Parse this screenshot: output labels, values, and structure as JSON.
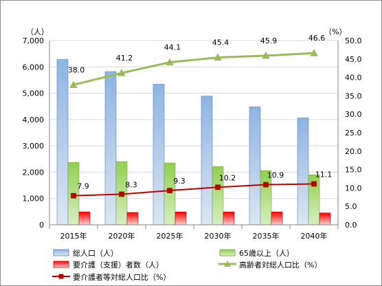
{
  "chart_data": {
    "type": "bar",
    "categories": [
      "2015年",
      "2020年",
      "2025年",
      "2030年",
      "2035年",
      "2040年"
    ],
    "y_left": {
      "unit_label": "（人）",
      "ylim": [
        0,
        7000
      ],
      "ticks": [
        "0",
        "1,000",
        "2,000",
        "3,000",
        "4,000",
        "5,000",
        "6,000",
        "7,000"
      ]
    },
    "y_right": {
      "unit_label": "（%）",
      "ylim": [
        0,
        50
      ],
      "ticks": [
        "0.0",
        "5.0",
        "10.0",
        "15.0",
        "20.0",
        "25.0",
        "30.0",
        "35.0",
        "40.0",
        "45.0",
        "50.0"
      ]
    },
    "grid": true,
    "legend_position": "bottom",
    "series": [
      {
        "name": "総人口（人）",
        "kind": "bar",
        "axis": "left",
        "color": "#8eb4e3",
        "values": [
          6280,
          5820,
          5340,
          4890,
          4480,
          4060
        ]
      },
      {
        "name": "65歳以上（人）",
        "kind": "bar",
        "axis": "left",
        "color": "#92d050",
        "values": [
          2370,
          2400,
          2350,
          2210,
          2060,
          1900
        ]
      },
      {
        "name": "要介護（支援）者数（人）",
        "kind": "bar",
        "axis": "left",
        "color": "#ff0000",
        "values": [
          490,
          470,
          490,
          490,
          490,
          450
        ]
      },
      {
        "name": "高齢者対総人口比（%）",
        "kind": "line",
        "axis": "right",
        "color": "#9bbb59",
        "marker": "triangle",
        "values": [
          38.0,
          41.2,
          44.1,
          45.4,
          45.9,
          46.6
        ],
        "labels": [
          "38.0",
          "41.2",
          "44.1",
          "45.4",
          "45.9",
          "46.6"
        ]
      },
      {
        "name": "要介護者等対総人口比（%）",
        "kind": "line",
        "axis": "right",
        "color": "#c00000",
        "marker": "square",
        "values": [
          7.9,
          8.3,
          9.3,
          10.2,
          10.9,
          11.1
        ],
        "labels": [
          "7.9",
          "8.3",
          "9.3",
          "10.2",
          "10.9",
          "11.1"
        ]
      }
    ]
  }
}
